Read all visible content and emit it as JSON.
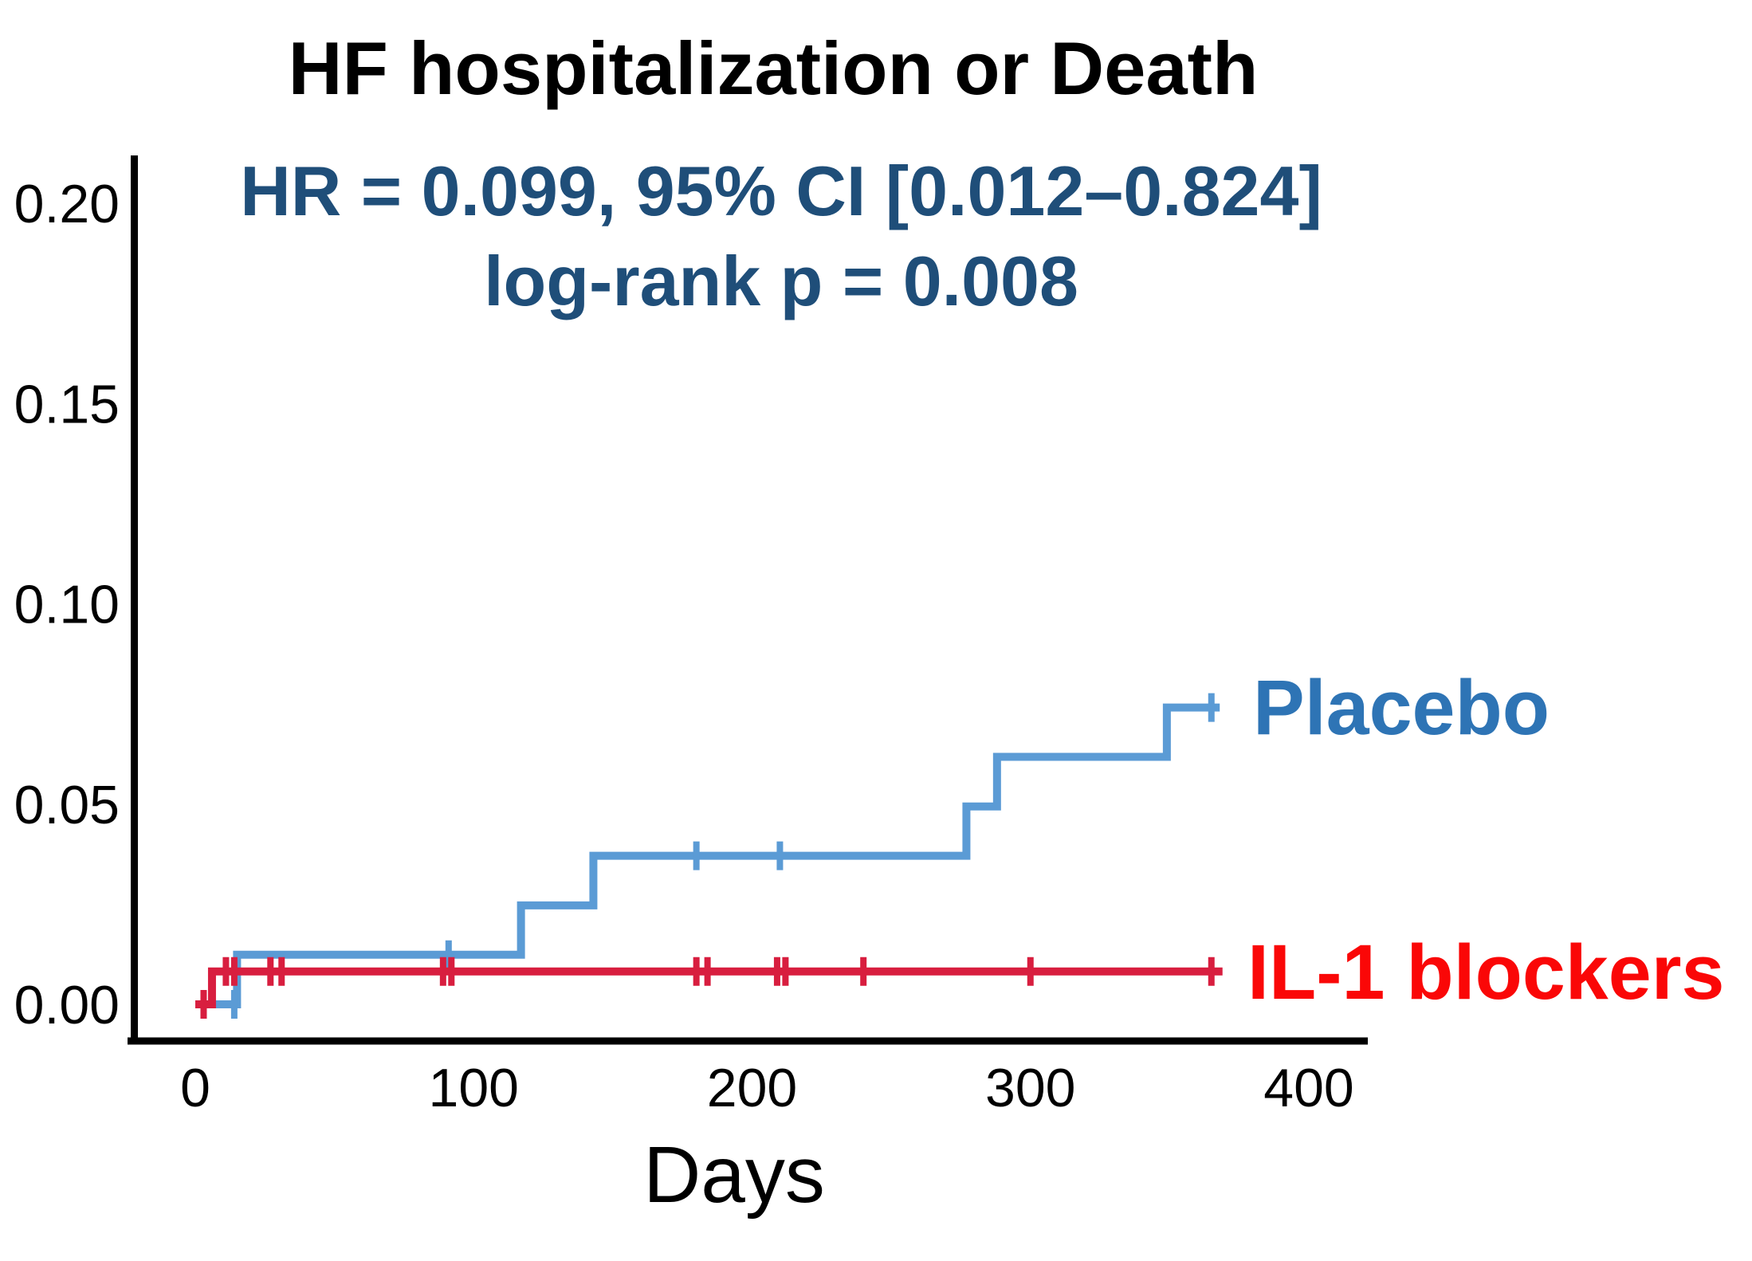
{
  "page": {
    "background": "#FFFFFF"
  },
  "chart_data": {
    "type": "line",
    "subtype": "kaplan_meier_cumulative_incidence_step",
    "title": "HF hospitalization or Death",
    "annotation_line1": "HR = 0.099, 95% CI [0.012–0.824]",
    "annotation_line2": "log-rank p = 0.008",
    "xlabel": "Days",
    "ylabel": "",
    "x_ticks": [
      0,
      100,
      200,
      300,
      400
    ],
    "y_ticks": [
      "0.00",
      "0.05",
      "0.10",
      "0.15",
      "0.20"
    ],
    "xlim": [
      0,
      420
    ],
    "ylim": [
      0,
      0.21
    ],
    "grid": false,
    "legend_position": "right of curve ends",
    "axis_color": "#000000",
    "tick_label_color": "#000000",
    "annotation_color": "#1F4E79",
    "title_color": "#000000",
    "series": [
      {
        "name": "Placebo",
        "line_color": "#5B9BD5",
        "label_color": "#2E74B5",
        "events": [
          [
            0,
            0
          ],
          [
            15,
            0.0124
          ],
          [
            117,
            0.0247
          ],
          [
            143,
            0.0371
          ],
          [
            277,
            0.0494
          ],
          [
            288,
            0.0618
          ],
          [
            349,
            0.0741
          ]
        ],
        "end_day": 368,
        "final_value": 0.0741,
        "censor_marks": [
          [
            14,
            0
          ],
          [
            91,
            0.0124
          ],
          [
            180,
            0.0371
          ],
          [
            210,
            0.0371
          ],
          [
            365,
            0.0741
          ]
        ]
      },
      {
        "name": "IL-1 blockers",
        "line_color": "#D81E3F",
        "label_color": "#FA0707",
        "events": [
          [
            0,
            0
          ],
          [
            6,
            0.0082
          ]
        ],
        "end_day": 369,
        "final_value": 0.0082,
        "censor_marks": [
          [
            3,
            0
          ],
          [
            11,
            0.0082
          ],
          [
            14,
            0.0082
          ],
          [
            27,
            0.0082
          ],
          [
            31,
            0.0082
          ],
          [
            89,
            0.0082
          ],
          [
            92,
            0.0082
          ],
          [
            180,
            0.0082
          ],
          [
            184,
            0.0082
          ],
          [
            209,
            0.0082
          ],
          [
            212,
            0.0082
          ],
          [
            240,
            0.0082
          ],
          [
            300,
            0.0082
          ],
          [
            365,
            0.0082
          ]
        ]
      }
    ]
  }
}
